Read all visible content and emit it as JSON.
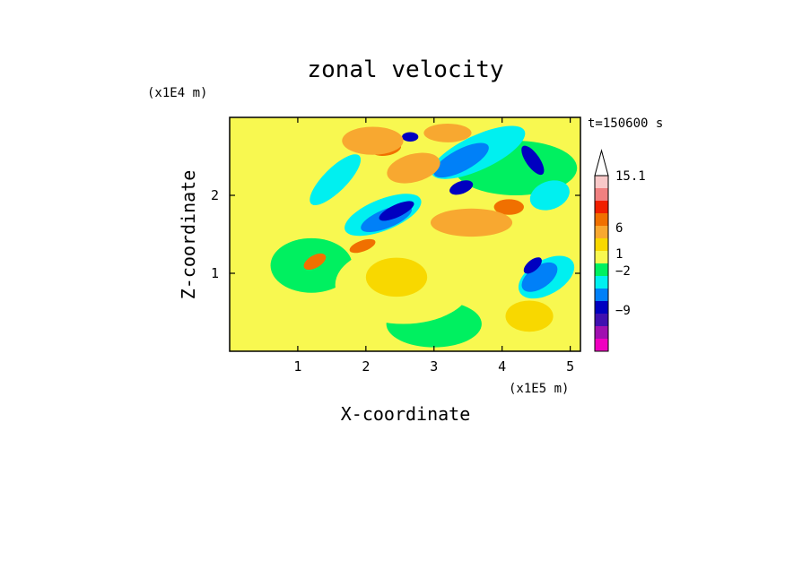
{
  "chart_data": {
    "type": "heatmap",
    "title": "zonal velocity",
    "xlabel": "X-coordinate",
    "ylabel": "Z-coordinate",
    "x_scale_label": "(x1E5 m)",
    "y_scale_label": "(x1E4 m)",
    "time_label": "t=150600 s",
    "xlim": [
      0,
      5.15
    ],
    "ylim": [
      0,
      3.0
    ],
    "x_ticks": [
      "1",
      "2",
      "3",
      "4",
      "5"
    ],
    "x_tick_values": [
      1,
      2,
      3,
      4,
      5
    ],
    "y_ticks": [
      "1",
      "2"
    ],
    "y_tick_values": [
      1,
      2
    ],
    "colorbar": {
      "labels": [
        "15.1",
        "6",
        "1",
        "−2",
        "−9"
      ],
      "label_values": [
        15.1,
        6,
        1,
        -2,
        -9
      ],
      "extend_max": true,
      "levels_top_to_bottom": [
        {
          "color": "#f8c8c8"
        },
        {
          "color": "#f08080"
        },
        {
          "color": "#f02000"
        },
        {
          "color": "#f07000"
        },
        {
          "color": "#f8a830"
        },
        {
          "color": "#f8d800"
        },
        {
          "color": "#f8f850"
        },
        {
          "color": "#00f060"
        },
        {
          "color": "#00f0f0"
        },
        {
          "color": "#0080f8"
        },
        {
          "color": "#0000c0"
        },
        {
          "color": "#4010b0"
        },
        {
          "color": "#a010b0"
        },
        {
          "color": "#f000c0"
        }
      ]
    },
    "regions": [
      {
        "level": 7,
        "shape": "ellipse",
        "cx": 4.2,
        "cy": 2.35,
        "rx": 0.9,
        "ry": 0.35
      },
      {
        "level": 7,
        "shape": "ellipse",
        "cx": 1.2,
        "cy": 1.1,
        "rx": 0.6,
        "ry": 0.35
      },
      {
        "level": 7,
        "shape": "ellipse",
        "cx": 3.0,
        "cy": 0.35,
        "rx": 0.7,
        "ry": 0.3
      },
      {
        "level": 6,
        "shape": "ellipse",
        "cx": 2.55,
        "cy": 0.85,
        "rx": 1.0,
        "ry": 0.5
      },
      {
        "level": 6,
        "shape": "ellipse",
        "cx": 0.6,
        "cy": 0.5,
        "rx": 0.45,
        "ry": 0.35
      },
      {
        "level": 6,
        "shape": "ellipse",
        "cx": 4.2,
        "cy": 1.65,
        "rx": 0.45,
        "ry": 0.3
      },
      {
        "level": 6,
        "shape": "ellipse",
        "cx": 0.9,
        "cy": 2.3,
        "rx": 0.6,
        "ry": 0.4
      },
      {
        "level": 5,
        "shape": "ellipse",
        "cx": 2.45,
        "cy": 0.95,
        "rx": 0.45,
        "ry": 0.25
      },
      {
        "level": 5,
        "shape": "ellipse",
        "cx": 4.4,
        "cy": 0.45,
        "rx": 0.35,
        "ry": 0.2
      },
      {
        "level": 8,
        "shape": "ellipse",
        "cx": 3.65,
        "cy": 2.55,
        "rx": 0.75,
        "ry": 0.22,
        "rot": -25
      },
      {
        "level": 8,
        "shape": "ellipse",
        "cx": 2.25,
        "cy": 1.75,
        "rx": 0.6,
        "ry": 0.2,
        "rot": -22
      },
      {
        "level": 8,
        "shape": "ellipse",
        "cx": 4.65,
        "cy": 0.95,
        "rx": 0.45,
        "ry": 0.22,
        "rot": -30
      },
      {
        "level": 8,
        "shape": "ellipse",
        "cx": 1.55,
        "cy": 2.2,
        "rx": 0.5,
        "ry": 0.15,
        "rot": -45
      },
      {
        "level": 8,
        "shape": "ellipse",
        "cx": 4.7,
        "cy": 2.0,
        "rx": 0.3,
        "ry": 0.18,
        "rot": -20
      },
      {
        "level": 9,
        "shape": "ellipse",
        "cx": 3.4,
        "cy": 2.45,
        "rx": 0.45,
        "ry": 0.14,
        "rot": -28
      },
      {
        "level": 9,
        "shape": "ellipse",
        "cx": 2.3,
        "cy": 1.7,
        "rx": 0.4,
        "ry": 0.12,
        "rot": -22
      },
      {
        "level": 9,
        "shape": "ellipse",
        "cx": 4.55,
        "cy": 0.95,
        "rx": 0.3,
        "ry": 0.14,
        "rot": -35
      },
      {
        "level": 10,
        "shape": "ellipse",
        "cx": 3.4,
        "cy": 2.1,
        "rx": 0.18,
        "ry": 0.08,
        "rot": -20
      },
      {
        "level": 10,
        "shape": "ellipse",
        "cx": 2.45,
        "cy": 1.8,
        "rx": 0.28,
        "ry": 0.08,
        "rot": -25
      },
      {
        "level": 10,
        "shape": "ellipse",
        "cx": 4.45,
        "cy": 1.1,
        "rx": 0.16,
        "ry": 0.07,
        "rot": -40
      },
      {
        "level": 10,
        "shape": "ellipse",
        "cx": 4.45,
        "cy": 2.45,
        "rx": 0.1,
        "ry": 0.22,
        "rot": -35
      },
      {
        "level": 10,
        "shape": "ellipse",
        "cx": 2.65,
        "cy": 2.75,
        "rx": 0.12,
        "ry": 0.06
      },
      {
        "level": 3,
        "shape": "ellipse",
        "cx": 2.7,
        "cy": 2.35,
        "rx": 0.28,
        "ry": 0.12,
        "rot": -15
      },
      {
        "level": 3,
        "shape": "ellipse",
        "cx": 3.55,
        "cy": 1.65,
        "rx": 0.45,
        "ry": 0.12
      },
      {
        "level": 3,
        "shape": "ellipse",
        "cx": 4.1,
        "cy": 1.85,
        "rx": 0.22,
        "ry": 0.1
      },
      {
        "level": 3,
        "shape": "ellipse",
        "cx": 2.3,
        "cy": 2.6,
        "rx": 0.22,
        "ry": 0.09,
        "rot": -10
      },
      {
        "level": 3,
        "shape": "ellipse",
        "cx": 1.25,
        "cy": 1.15,
        "rx": 0.18,
        "ry": 0.08,
        "rot": -30
      },
      {
        "level": 3,
        "shape": "ellipse",
        "cx": 1.95,
        "cy": 1.35,
        "rx": 0.2,
        "ry": 0.07,
        "rot": -20
      },
      {
        "level": 4,
        "shape": "ellipse",
        "cx": 2.7,
        "cy": 2.35,
        "rx": 0.4,
        "ry": 0.18,
        "rot": -15
      },
      {
        "level": 4,
        "shape": "ellipse",
        "cx": 3.55,
        "cy": 1.65,
        "rx": 0.6,
        "ry": 0.18
      },
      {
        "level": 4,
        "shape": "ellipse",
        "cx": 2.1,
        "cy": 2.7,
        "rx": 0.45,
        "ry": 0.18
      },
      {
        "level": 4,
        "shape": "ellipse",
        "cx": 3.2,
        "cy": 2.8,
        "rx": 0.35,
        "ry": 0.12
      }
    ]
  }
}
